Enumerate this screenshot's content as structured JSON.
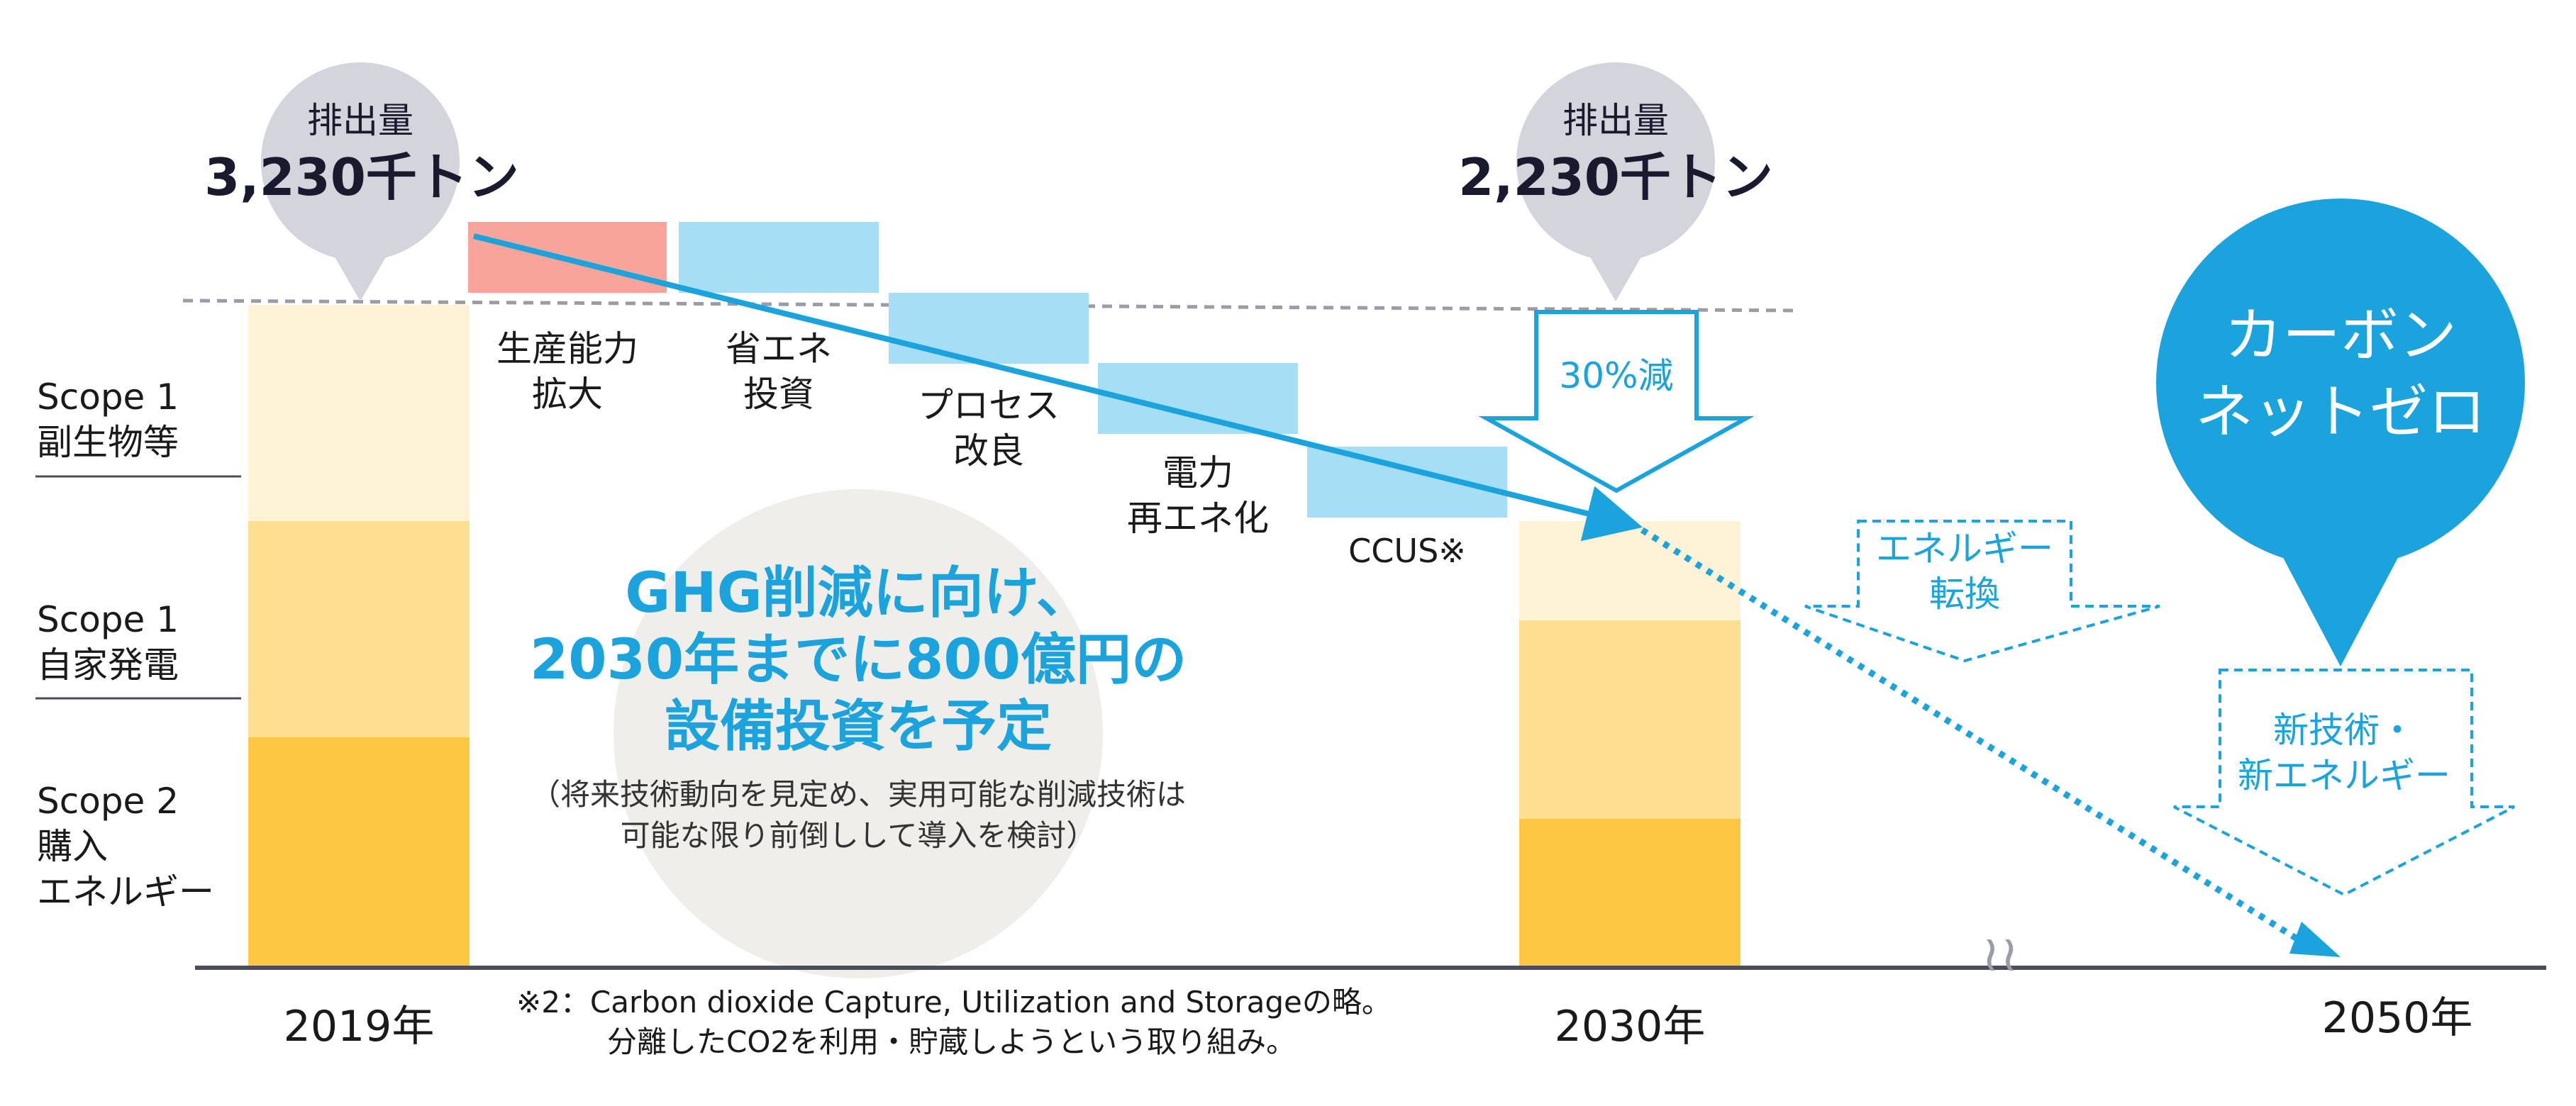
{
  "colors": {
    "bar_dark": "#fdc743",
    "bar_mid": "#fedf92",
    "bar_light": "#fef3d7",
    "red_step": "#f8a49a",
    "blue_step": "#a5def5",
    "accent_blue": "#1aa3dc",
    "grey_bubble": "#d3d4dc",
    "grey_circle": "#efeeea",
    "axis": "#4a4e5a"
  },
  "bubbles": {
    "left": {
      "title": "排出量",
      "value": "3,230千トン"
    },
    "right": {
      "title": "排出量",
      "value": "2,230千トン"
    }
  },
  "legend": {
    "scope1_byproduct": [
      "Scope 1",
      "副生物等"
    ],
    "scope1_power": [
      "Scope 1",
      "自家発電"
    ],
    "scope2": [
      "Scope 2",
      "購入",
      "エネルギー"
    ]
  },
  "steps": {
    "capacity": [
      "生産能力",
      "拡大"
    ],
    "energy_saving": [
      "省エネ",
      "投資"
    ],
    "process": [
      "プロセス",
      "改良"
    ],
    "power": [
      "電力",
      "再エネ化"
    ],
    "ccus": "CCUS※"
  },
  "reduction_arrow": "30%減",
  "headline": [
    "GHG削減に向け、",
    "2030年までに800億円の",
    "設備投資を予定"
  ],
  "subnote": [
    "（将来技術動向を見定め、実用可能な削減技術は",
    "可能な限り前倒しして導入を検討）"
  ],
  "footnote": [
    "※2：Carbon dioxide Capture, Utilization and Storageの略。",
    "分離したCO2を利用・貯蔵しようという取り組み。"
  ],
  "dashed_arrows": {
    "energy_conversion": [
      "エネルギー",
      "転換"
    ],
    "new_tech": [
      "新技術・",
      "新エネルギー"
    ]
  },
  "net_zero": [
    "カーボン",
    "ネットゼロ"
  ],
  "years": {
    "y2019": "2019年",
    "y2030": "2030年",
    "y2050": "2050年"
  },
  "axis_break": "≀≀"
}
